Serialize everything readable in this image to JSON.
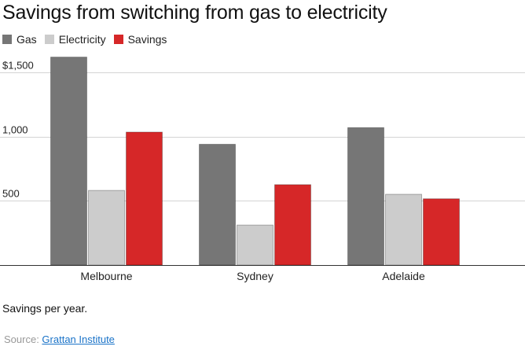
{
  "chart_data": {
    "type": "bar",
    "title": "Savings from switching from gas to electricity",
    "categories": [
      "Melbourne",
      "Sydney",
      "Adelaide"
    ],
    "series": [
      {
        "name": "Gas",
        "color": "#767676",
        "values": [
          1625,
          945,
          1075
        ]
      },
      {
        "name": "Electricity",
        "color": "#cccccc",
        "values": [
          585,
          315,
          555
        ]
      },
      {
        "name": "Savings",
        "color": "#d62728",
        "values": [
          1040,
          630,
          520
        ]
      }
    ],
    "ylim": [
      0,
      1650
    ],
    "yticks": [
      {
        "value": 500,
        "label": "500"
      },
      {
        "value": 1000,
        "label": "1,000"
      },
      {
        "value": 1500,
        "label": "$1,500"
      }
    ],
    "xlabel": "",
    "ylabel": "",
    "grid": true,
    "legend_position": "top-left"
  },
  "note": "Savings per year.",
  "source": {
    "prefix": "Source: ",
    "link_text": "Grattan Institute"
  }
}
